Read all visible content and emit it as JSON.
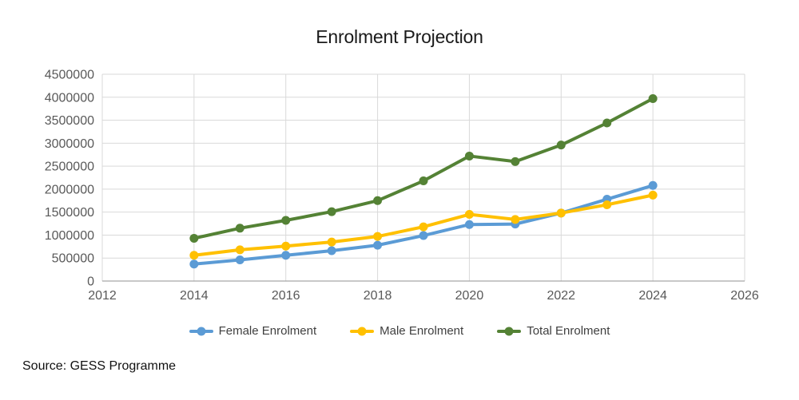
{
  "title": "Enrolment Projection",
  "source_note": "Source: GESS Programme",
  "colors": {
    "female": "#5B9BD5",
    "male": "#FFC000",
    "total": "#548235",
    "gridline": "#D9D9D9",
    "axis_line": "#A6A6A6",
    "axis_text": "#595959",
    "title_text": "#1A1A1A"
  },
  "legend": {
    "items": [
      {
        "label": "Female Enrolment",
        "color": "#5B9BD5"
      },
      {
        "label": "Male Enrolment",
        "color": "#FFC000"
      },
      {
        "label": "Total Enrolment",
        "color": "#548235"
      }
    ]
  },
  "chart_data": {
    "type": "line",
    "title": "Enrolment Projection",
    "x": [
      2014,
      2015,
      2016,
      2017,
      2018,
      2019,
      2020,
      2021,
      2022,
      2023,
      2024
    ],
    "series": [
      {
        "name": "Female Enrolment",
        "color": "#5B9BD5",
        "values": [
          370000,
          460000,
          560000,
          660000,
          780000,
          990000,
          1230000,
          1240000,
          1480000,
          1780000,
          2080000
        ]
      },
      {
        "name": "Male Enrolment",
        "color": "#FFC000",
        "values": [
          560000,
          680000,
          760000,
          850000,
          970000,
          1180000,
          1450000,
          1340000,
          1480000,
          1660000,
          1870000
        ]
      },
      {
        "name": "Total Enrolment",
        "color": "#548235",
        "values": [
          930000,
          1150000,
          1320000,
          1510000,
          1750000,
          2180000,
          2720000,
          2600000,
          2960000,
          3440000,
          3970000
        ]
      }
    ],
    "xlim": [
      2012,
      2026
    ],
    "ylim": [
      0,
      4500000
    ],
    "x_ticks": [
      2012,
      2014,
      2016,
      2018,
      2020,
      2022,
      2024,
      2026
    ],
    "y_ticks": [
      0,
      500000,
      1000000,
      1500000,
      2000000,
      2500000,
      3000000,
      3500000,
      4000000,
      4500000
    ],
    "grid": "both",
    "legend_position": "bottom",
    "marker": "circle"
  }
}
